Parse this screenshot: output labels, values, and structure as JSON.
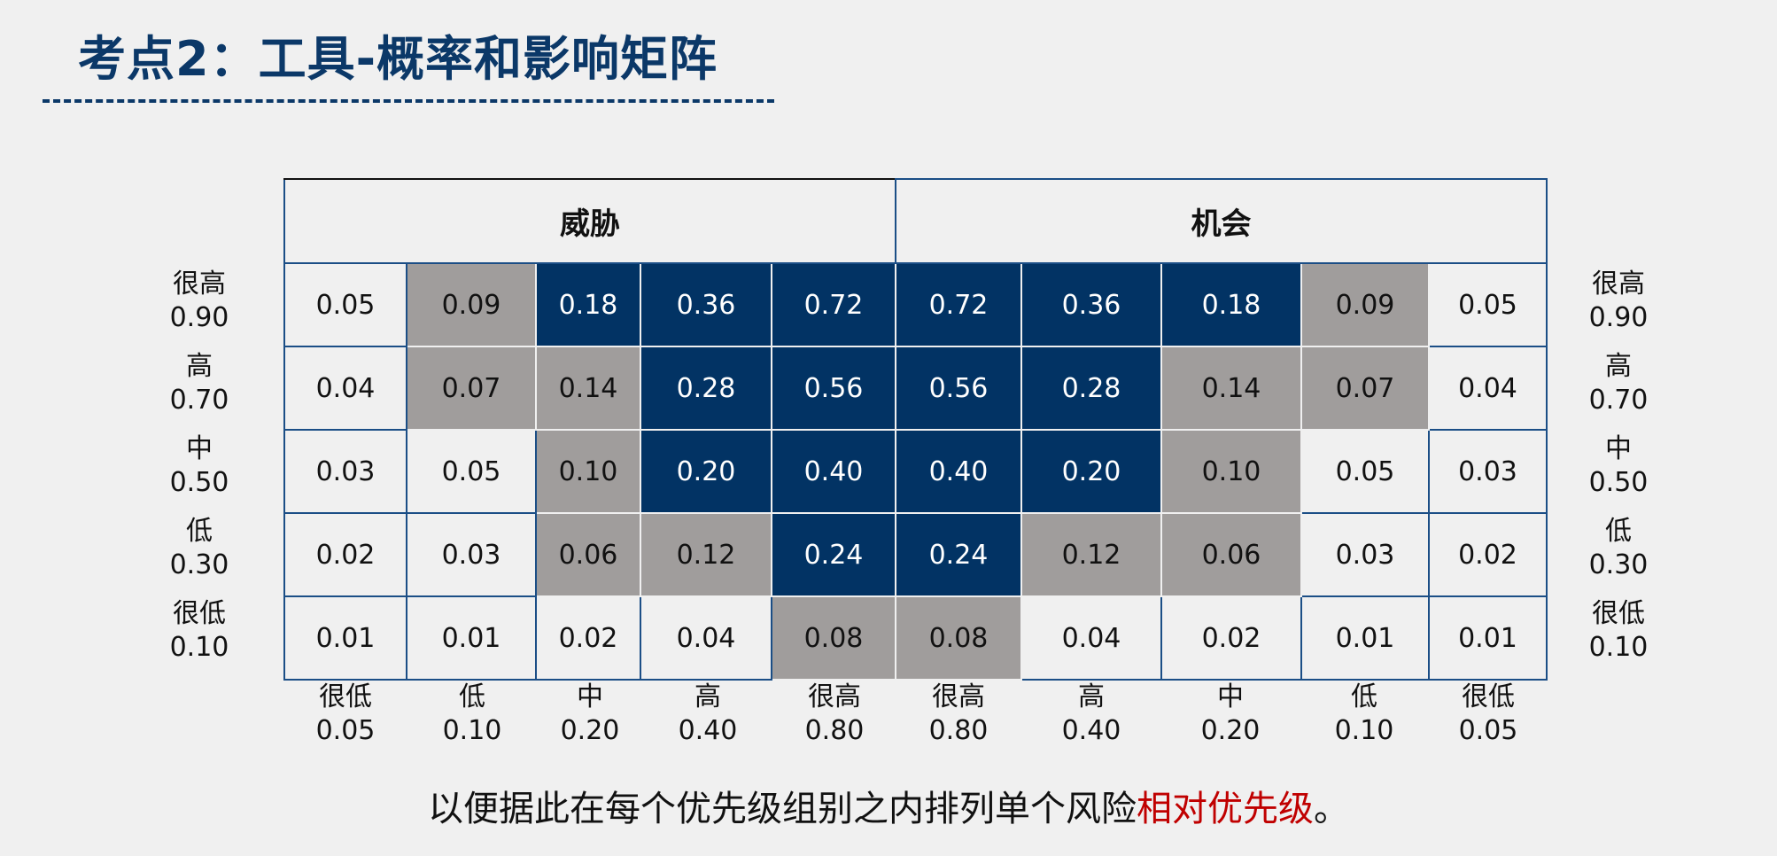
{
  "title": "考点2：工具-概率和影响矩阵",
  "matrix": {
    "threat_label": "威胁",
    "opportunity_label": "机会",
    "rows": [
      {
        "label": "很高",
        "value": "0.90",
        "cells": [
          "0.05",
          "0.09",
          "0.18",
          "0.36",
          "0.72",
          "0.72",
          "0.36",
          "0.18",
          "0.09",
          "0.05"
        ],
        "levels": [
          "w",
          "g",
          "b",
          "b",
          "b",
          "b",
          "b",
          "b",
          "g",
          "w"
        ]
      },
      {
        "label": "高",
        "value": "0.70",
        "cells": [
          "0.04",
          "0.07",
          "0.14",
          "0.28",
          "0.56",
          "0.56",
          "0.28",
          "0.14",
          "0.07",
          "0.04"
        ],
        "levels": [
          "w",
          "g",
          "g",
          "b",
          "b",
          "b",
          "b",
          "g",
          "g",
          "w"
        ]
      },
      {
        "label": "中",
        "value": "0.50",
        "cells": [
          "0.03",
          "0.05",
          "0.10",
          "0.20",
          "0.40",
          "0.40",
          "0.20",
          "0.10",
          "0.05",
          "0.03"
        ],
        "levels": [
          "w",
          "w",
          "g",
          "b",
          "b",
          "b",
          "b",
          "g",
          "w",
          "w"
        ]
      },
      {
        "label": "低",
        "value": "0.30",
        "cells": [
          "0.02",
          "0.03",
          "0.06",
          "0.12",
          "0.24",
          "0.24",
          "0.12",
          "0.06",
          "0.03",
          "0.02"
        ],
        "levels": [
          "w",
          "w",
          "g",
          "g",
          "b",
          "b",
          "g",
          "g",
          "w",
          "w"
        ]
      },
      {
        "label": "很低",
        "value": "0.10",
        "cells": [
          "0.01",
          "0.01",
          "0.02",
          "0.04",
          "0.08",
          "0.08",
          "0.04",
          "0.02",
          "0.01",
          "0.01"
        ],
        "levels": [
          "w",
          "w",
          "w",
          "w",
          "g",
          "g",
          "w",
          "w",
          "w",
          "w"
        ]
      }
    ],
    "columns": [
      {
        "label": "很低",
        "value": "0.05"
      },
      {
        "label": "低",
        "value": "0.10"
      },
      {
        "label": "中",
        "value": "0.20"
      },
      {
        "label": "高",
        "value": "0.40"
      },
      {
        "label": "很高",
        "value": "0.80"
      },
      {
        "label": "很高",
        "value": "0.80"
      },
      {
        "label": "高",
        "value": "0.40"
      },
      {
        "label": "中",
        "value": "0.20"
      },
      {
        "label": "低",
        "value": "0.10"
      },
      {
        "label": "很低",
        "value": "0.05"
      }
    ]
  },
  "footnote": {
    "text": "以便据此在每个优先级组别之内排列单个风险",
    "highlight": "相对优先级",
    "end": "。"
  },
  "colors": {
    "title": "#0b3868",
    "high": "#023364",
    "medium": "#a09d9c",
    "low": "#f0f0f0",
    "highlight": "#c00000"
  }
}
